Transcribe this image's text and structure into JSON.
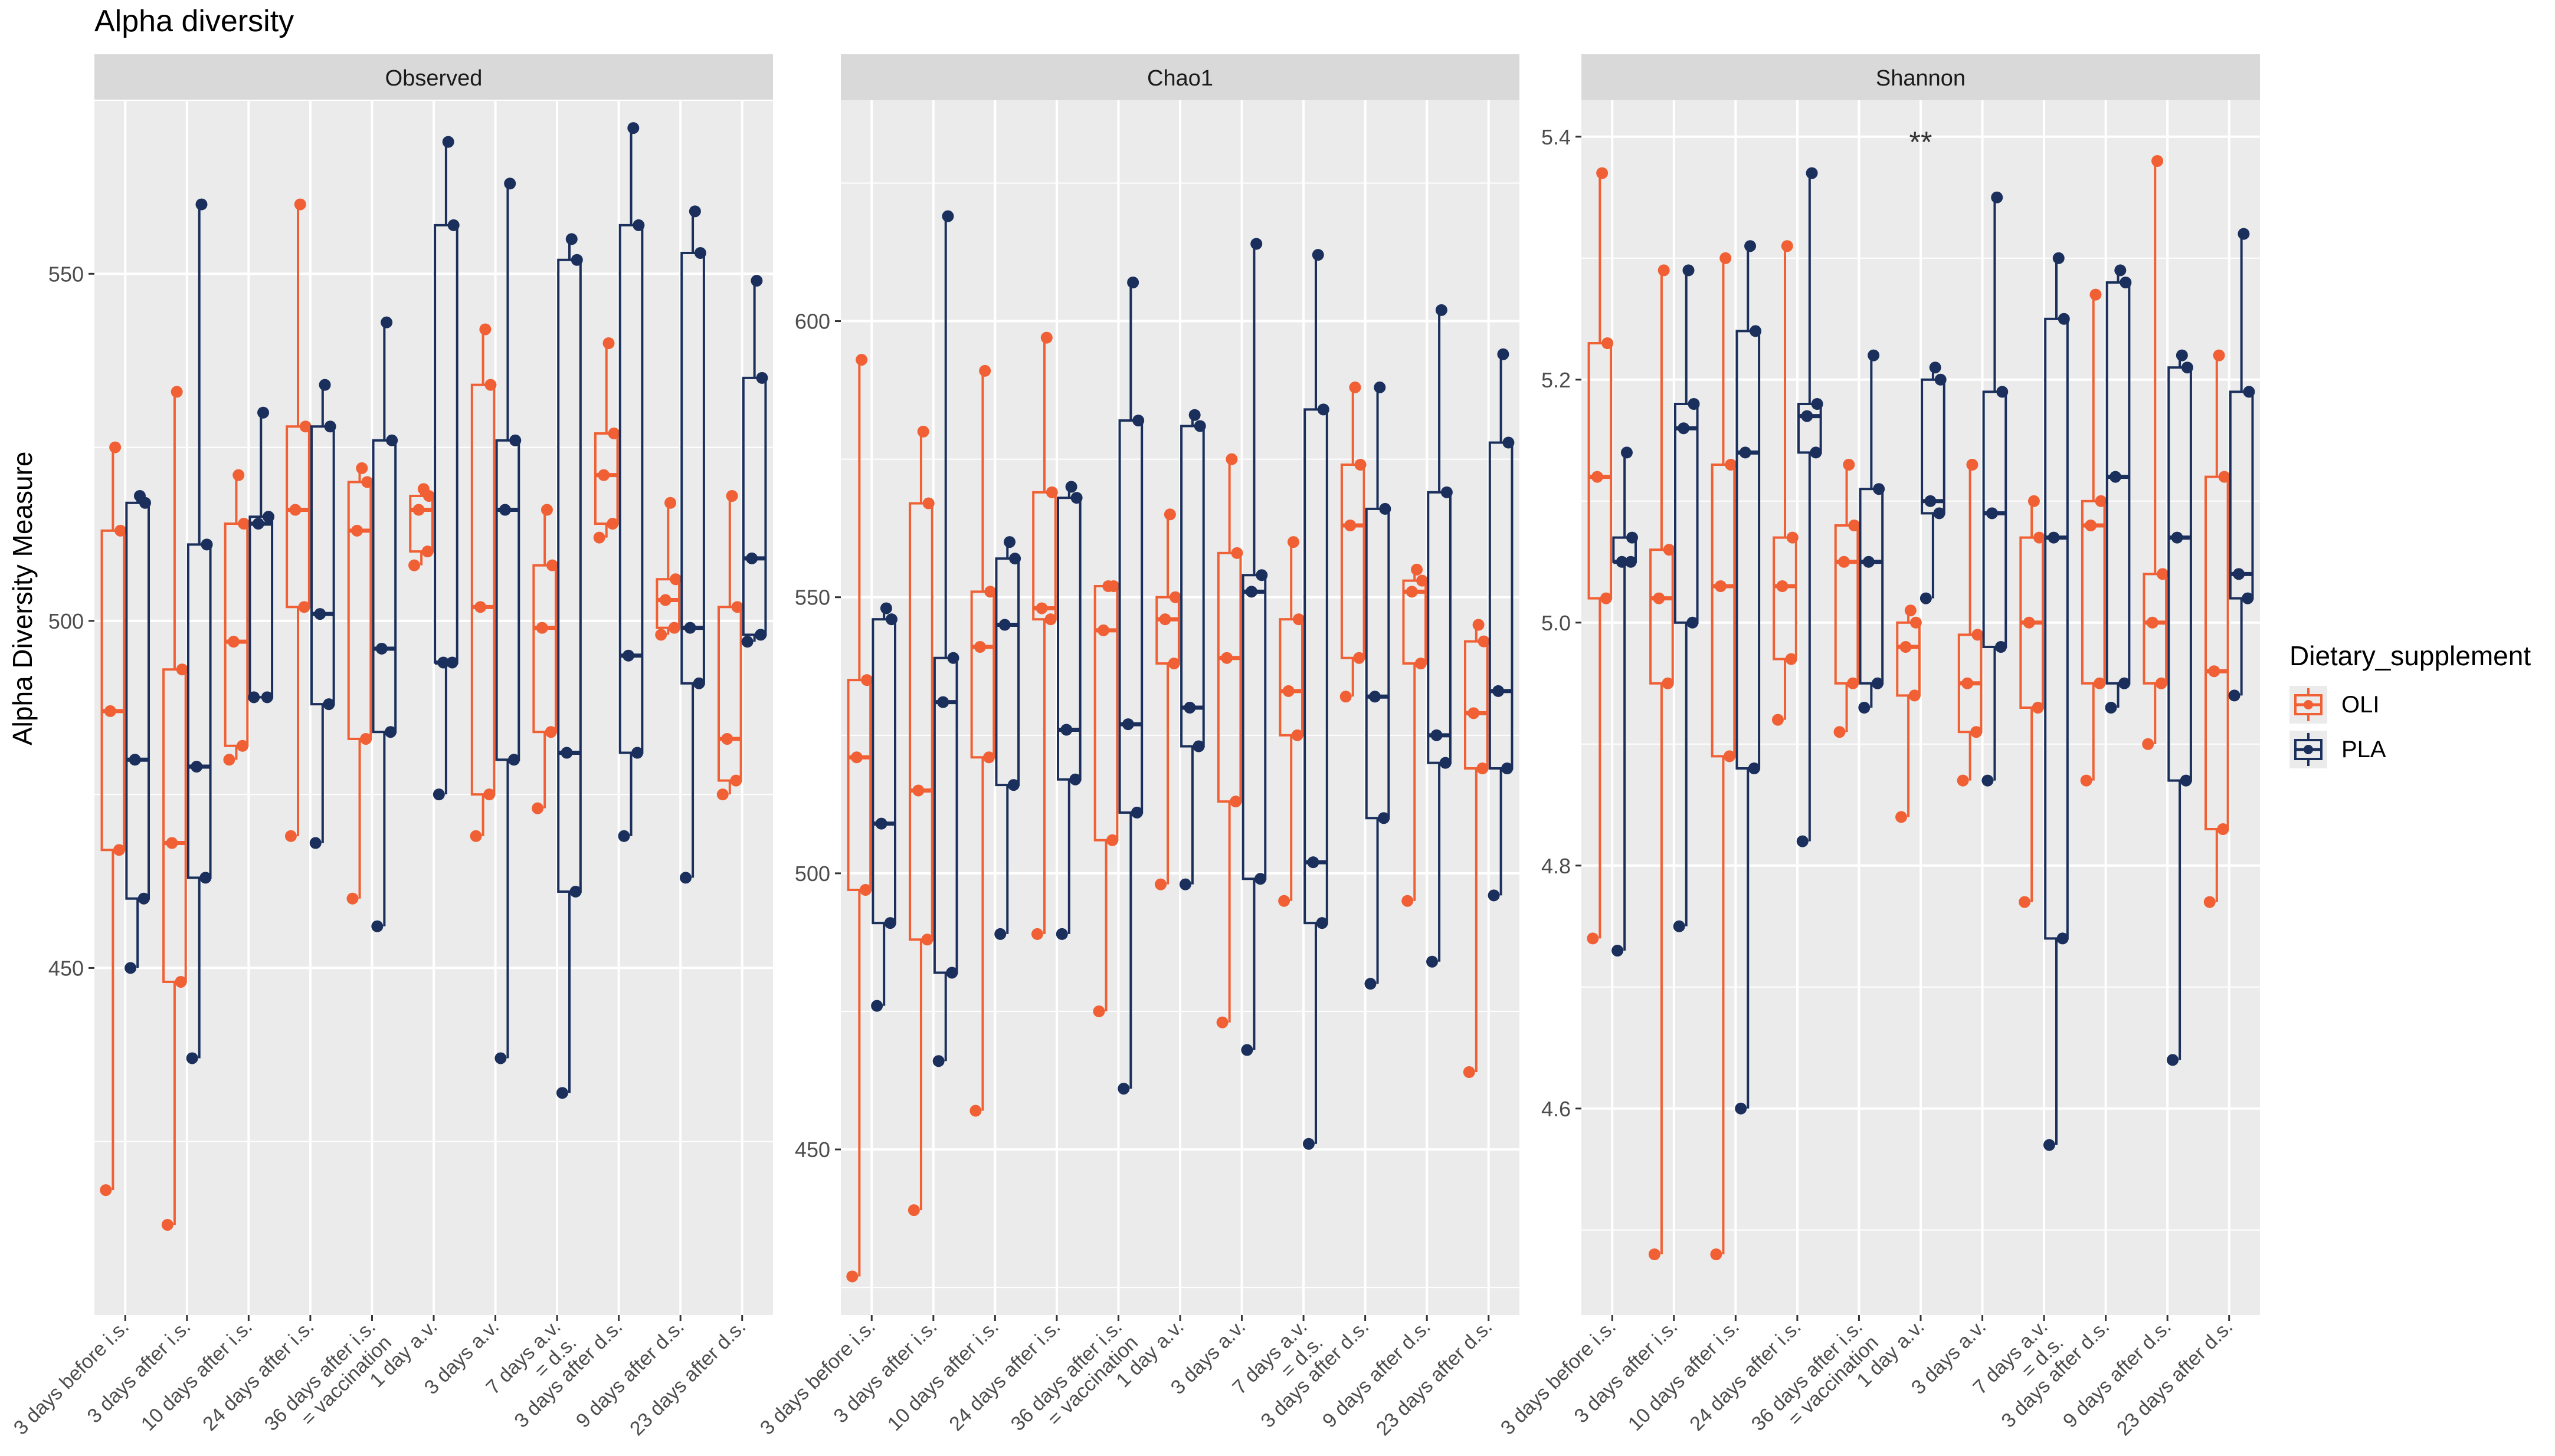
{
  "title": "Alpha diversity",
  "y_axis_label": "Alpha Diversity Measure",
  "legend": {
    "title": "Dietary_supplement",
    "items": [
      {
        "label": "OLI",
        "color": "#f06034"
      },
      {
        "label": "PLA",
        "color": "#1a2f5c"
      }
    ]
  },
  "colors": {
    "panel_bg": "#ebebeb",
    "strip_bg": "#d9d9d9",
    "grid": "#ffffff"
  },
  "chart_data": [
    {
      "type": "boxplot",
      "title": "Observed",
      "ylim": [
        400,
        575
      ],
      "yticks": [
        450,
        500,
        550
      ],
      "categories": [
        "3 days before i.s.",
        "3 days after i.s.",
        "10 days after i.s.",
        "24 days after i.s.",
        "36 days after i.s. = vaccination",
        "1 day a.v.",
        "3 days a.v.",
        "7 days a.v. = d.s.",
        "3 days after d.s.",
        "9 days after d.s.",
        "23 days after d.s."
      ],
      "annotation": "",
      "series": [
        {
          "name": "OLI",
          "boxes": [
            {
              "min": 418,
              "q1": 467,
              "median": 487,
              "q3": 513,
              "max": 525
            },
            {
              "min": 413,
              "q1": 448,
              "median": 468,
              "q3": 493,
              "max": 533
            },
            {
              "min": 480,
              "q1": 482,
              "median": 497,
              "q3": 514,
              "max": 521
            },
            {
              "min": 469,
              "q1": 502,
              "median": 516,
              "q3": 528,
              "max": 560
            },
            {
              "min": 460,
              "q1": 483,
              "median": 513,
              "q3": 520,
              "max": 522
            },
            {
              "min": 508,
              "q1": 510,
              "median": 516,
              "q3": 518,
              "max": 519
            },
            {
              "min": 469,
              "q1": 475,
              "median": 502,
              "q3": 534,
              "max": 542
            },
            {
              "min": 473,
              "q1": 484,
              "median": 499,
              "q3": 508,
              "max": 516
            },
            {
              "min": 512,
              "q1": 514,
              "median": 521,
              "q3": 527,
              "max": 540
            },
            {
              "min": 498,
              "q1": 499,
              "median": 503,
              "q3": 506,
              "max": 517
            },
            {
              "min": 475,
              "q1": 477,
              "median": 483,
              "q3": 502,
              "max": 518
            }
          ]
        },
        {
          "name": "PLA",
          "boxes": [
            {
              "min": 450,
              "q1": 460,
              "median": 480,
              "q3": 517,
              "max": 518
            },
            {
              "min": 437,
              "q1": 463,
              "median": 479,
              "q3": 511,
              "max": 560
            },
            {
              "min": 489,
              "q1": 489,
              "median": 514,
              "q3": 515,
              "max": 530
            },
            {
              "min": 468,
              "q1": 488,
              "median": 501,
              "q3": 528,
              "max": 534
            },
            {
              "min": 456,
              "q1": 484,
              "median": 496,
              "q3": 526,
              "max": 543
            },
            {
              "min": 475,
              "q1": 494,
              "median": 494,
              "q3": 557,
              "max": 569
            },
            {
              "min": 437,
              "q1": 480,
              "median": 516,
              "q3": 526,
              "max": 563
            },
            {
              "min": 432,
              "q1": 461,
              "median": 481,
              "q3": 552,
              "max": 555
            },
            {
              "min": 469,
              "q1": 481,
              "median": 495,
              "q3": 557,
              "max": 571
            },
            {
              "min": 463,
              "q1": 491,
              "median": 499,
              "q3": 553,
              "max": 559
            },
            {
              "min": 497,
              "q1": 498,
              "median": 509,
              "q3": 535,
              "max": 549
            }
          ]
        }
      ]
    },
    {
      "type": "boxplot",
      "title": "Chao1",
      "ylim": [
        420,
        640
      ],
      "yticks": [
        450,
        500,
        550,
        600
      ],
      "categories": [
        "3 days before i.s.",
        "3 days after i.s.",
        "10 days after i.s.",
        "24 days after i.s.",
        "36 days after i.s. = vaccination",
        "1 day a.v.",
        "3 days a.v.",
        "7 days a.v. = d.s.",
        "3 days after d.s.",
        "9 days after d.s.",
        "23 days after d.s."
      ],
      "annotation": "",
      "series": [
        {
          "name": "OLI",
          "boxes": [
            {
              "min": 427,
              "q1": 497,
              "median": 521,
              "q3": 535,
              "max": 593
            },
            {
              "min": 439,
              "q1": 488,
              "median": 515,
              "q3": 567,
              "max": 580
            },
            {
              "min": 457,
              "q1": 521,
              "median": 541,
              "q3": 551,
              "max": 591
            },
            {
              "min": 489,
              "q1": 546,
              "median": 548,
              "q3": 569,
              "max": 597
            },
            {
              "min": 475,
              "q1": 506,
              "median": 544,
              "q3": 552,
              "max": 552
            },
            {
              "min": 498,
              "q1": 538,
              "median": 546,
              "q3": 550,
              "max": 565
            },
            {
              "min": 473,
              "q1": 513,
              "median": 539,
              "q3": 558,
              "max": 575
            },
            {
              "min": 495,
              "q1": 525,
              "median": 533,
              "q3": 546,
              "max": 560
            },
            {
              "min": 532,
              "q1": 539,
              "median": 563,
              "q3": 574,
              "max": 588
            },
            {
              "min": 495,
              "q1": 538,
              "median": 551,
              "q3": 553,
              "max": 555
            },
            {
              "min": 464,
              "q1": 519,
              "median": 529,
              "q3": 542,
              "max": 545
            }
          ]
        },
        {
          "name": "PLA",
          "boxes": [
            {
              "min": 476,
              "q1": 491,
              "median": 509,
              "q3": 546,
              "max": 548
            },
            {
              "min": 466,
              "q1": 482,
              "median": 531,
              "q3": 539,
              "max": 619
            },
            {
              "min": 489,
              "q1": 516,
              "median": 545,
              "q3": 557,
              "max": 560
            },
            {
              "min": 489,
              "q1": 517,
              "median": 526,
              "q3": 568,
              "max": 570
            },
            {
              "min": 461,
              "q1": 511,
              "median": 527,
              "q3": 582,
              "max": 607
            },
            {
              "min": 498,
              "q1": 523,
              "median": 530,
              "q3": 581,
              "max": 583
            },
            {
              "min": 468,
              "q1": 499,
              "median": 551,
              "q3": 554,
              "max": 614
            },
            {
              "min": 451,
              "q1": 491,
              "median": 502,
              "q3": 584,
              "max": 612
            },
            {
              "min": 480,
              "q1": 510,
              "median": 532,
              "q3": 566,
              "max": 588
            },
            {
              "min": 484,
              "q1": 520,
              "median": 525,
              "q3": 569,
              "max": 602
            },
            {
              "min": 496,
              "q1": 519,
              "median": 533,
              "q3": 578,
              "max": 594
            }
          ]
        }
      ]
    },
    {
      "type": "boxplot",
      "title": "Shannon",
      "ylim": [
        4.43,
        5.43
      ],
      "yticks": [
        4.6,
        4.8,
        5.0,
        5.2,
        5.4
      ],
      "categories": [
        "3 days before i.s.",
        "3 days after i.s.",
        "10 days after i.s.",
        "24 days after i.s.",
        "36 days after i.s. = vaccination",
        "1 day a.v.",
        "3 days a.v.",
        "7 days a.v. = d.s.",
        "3 days after d.s.",
        "9 days after d.s.",
        "23 days after d.s."
      ],
      "annotation": "**",
      "annotation_index": 5,
      "series": [
        {
          "name": "OLI",
          "boxes": [
            {
              "min": 4.74,
              "q1": 5.02,
              "median": 5.12,
              "q3": 5.23,
              "max": 5.37
            },
            {
              "min": 4.48,
              "q1": 4.95,
              "median": 5.02,
              "q3": 5.06,
              "max": 5.29
            },
            {
              "min": 4.48,
              "q1": 4.89,
              "median": 5.03,
              "q3": 5.13,
              "max": 5.3
            },
            {
              "min": 4.92,
              "q1": 4.97,
              "median": 5.03,
              "q3": 5.07,
              "max": 5.31
            },
            {
              "min": 4.91,
              "q1": 4.95,
              "median": 5.05,
              "q3": 5.08,
              "max": 5.13
            },
            {
              "min": 4.84,
              "q1": 4.94,
              "median": 4.98,
              "q3": 5.0,
              "max": 5.01
            },
            {
              "min": 4.87,
              "q1": 4.91,
              "median": 4.95,
              "q3": 4.99,
              "max": 5.13
            },
            {
              "min": 4.77,
              "q1": 4.93,
              "median": 5.0,
              "q3": 5.07,
              "max": 5.1
            },
            {
              "min": 4.87,
              "q1": 4.95,
              "median": 5.08,
              "q3": 5.1,
              "max": 5.27
            },
            {
              "min": 4.9,
              "q1": 4.95,
              "median": 5.0,
              "q3": 5.04,
              "max": 5.38
            },
            {
              "min": 4.77,
              "q1": 4.83,
              "median": 4.96,
              "q3": 5.12,
              "max": 5.22
            }
          ]
        },
        {
          "name": "PLA",
          "boxes": [
            {
              "min": 4.73,
              "q1": 5.05,
              "median": 5.05,
              "q3": 5.07,
              "max": 5.14
            },
            {
              "min": 4.75,
              "q1": 5.0,
              "median": 5.16,
              "q3": 5.18,
              "max": 5.29
            },
            {
              "min": 4.6,
              "q1": 4.88,
              "median": 5.14,
              "q3": 5.24,
              "max": 5.31
            },
            {
              "min": 4.82,
              "q1": 5.14,
              "median": 5.17,
              "q3": 5.18,
              "max": 5.37
            },
            {
              "min": 4.93,
              "q1": 4.95,
              "median": 5.05,
              "q3": 5.11,
              "max": 5.22
            },
            {
              "min": 5.02,
              "q1": 5.09,
              "median": 5.1,
              "q3": 5.2,
              "max": 5.21
            },
            {
              "min": 4.87,
              "q1": 4.98,
              "median": 5.09,
              "q3": 5.19,
              "max": 5.35
            },
            {
              "min": 4.57,
              "q1": 4.74,
              "median": 5.07,
              "q3": 5.25,
              "max": 5.3
            },
            {
              "min": 4.93,
              "q1": 4.95,
              "median": 5.12,
              "q3": 5.28,
              "max": 5.29
            },
            {
              "min": 4.64,
              "q1": 4.87,
              "median": 5.07,
              "q3": 5.21,
              "max": 5.22
            },
            {
              "min": 4.94,
              "q1": 5.02,
              "median": 5.04,
              "q3": 5.19,
              "max": 5.32
            }
          ]
        }
      ]
    }
  ]
}
